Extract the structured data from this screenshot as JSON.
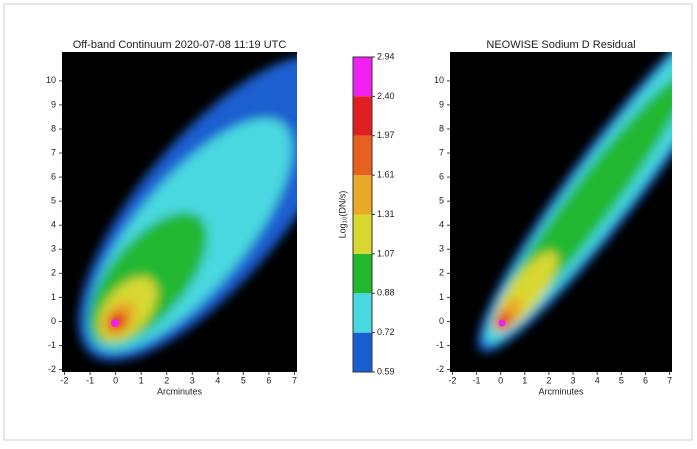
{
  "chart_data": [
    {
      "type": "image",
      "title": "Off-band Continuum 2020-07-08 11:19 UTC",
      "x_label": "Arcminutes",
      "xlim": [
        -2.1,
        7.1
      ],
      "ylim": [
        -2.1,
        11.2
      ],
      "xticks": [
        -2,
        -1,
        0,
        1,
        2,
        3,
        4,
        5,
        6,
        7
      ],
      "yticks": [
        -2,
        -1,
        0,
        1,
        2,
        3,
        4,
        5,
        6,
        7,
        8,
        9,
        10
      ]
    },
    {
      "type": "colorbar",
      "label": "Log₁₀(DN/s)",
      "ticks": [
        0.59,
        0.72,
        0.88,
        1.07,
        1.31,
        1.61,
        1.97,
        {
          "value": 2.4,
          "label": "2.40"
        },
        2.94
      ],
      "colors": [
        "#1a5fd0",
        "#48d8e0",
        "#22b830",
        "#d8d830",
        "#e8a828",
        "#e86020",
        "#e02020",
        "#f020f0"
      ]
    },
    {
      "type": "image",
      "title": "NEOWISE Sodium D Residual",
      "x_label": "Arcminutes",
      "xlim": [
        -2.1,
        7.1
      ],
      "ylim": [
        -2.1,
        11.2
      ],
      "xticks": [
        -2,
        -1,
        0,
        1,
        2,
        3,
        4,
        5,
        6,
        7
      ],
      "yticks": [
        -2,
        -1,
        0,
        1,
        2,
        3,
        4,
        5,
        6,
        7,
        8,
        9,
        10
      ]
    }
  ]
}
